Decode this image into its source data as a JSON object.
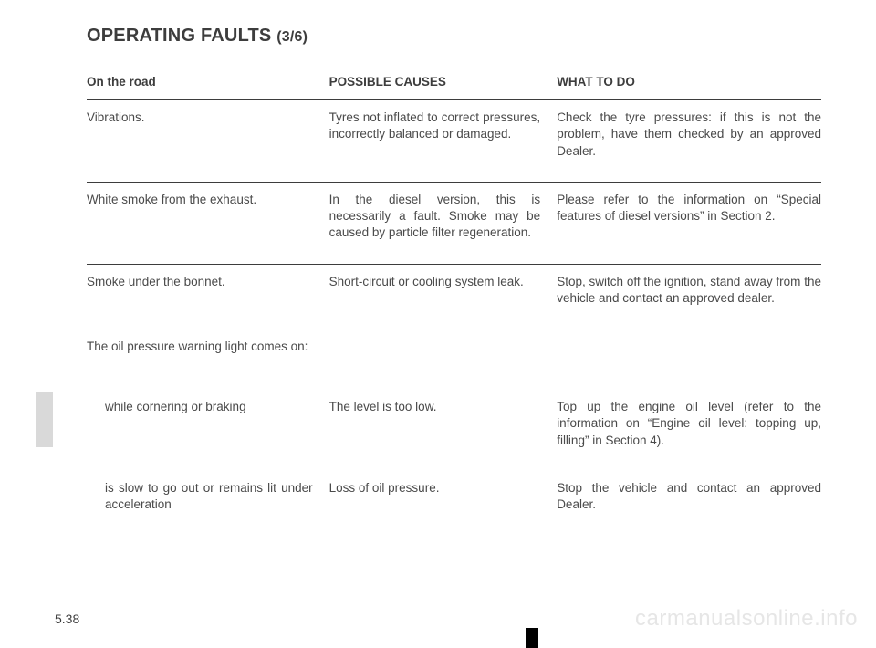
{
  "title_main": "OPERATING FAULTS",
  "title_part": "(3/6)",
  "headers": {
    "col1": "On the road",
    "col2": "POSSIBLE CAUSES",
    "col3": "WHAT TO DO"
  },
  "rows": [
    {
      "symptom": "Vibrations.",
      "cause": "Tyres not inflated to correct pressures, incorrectly balanced or damaged.",
      "action": "Check the tyre pressures: if this is not the problem, have them checked by an approved Dealer."
    },
    {
      "symptom": "White smoke from the exhaust.",
      "cause": "In the diesel version, this is necessarily a fault. Smoke may be caused by particle filter regeneration.",
      "action": "Please refer to the information on “Special features of diesel versions” in Section 2."
    },
    {
      "symptom": "Smoke under the bonnet.",
      "cause": "Short-circuit or cooling system leak.",
      "action": "Stop, switch off the ignition, stand away from the vehicle and contact an approved dealer."
    }
  ],
  "oil_intro": "The oil pressure warning light comes on:",
  "oil_rows": [
    {
      "symptom": "while cornering or braking",
      "cause": "The level is too low.",
      "action": "Top up the engine oil level (refer to the information on “Engine oil level: topping up, filling” in Section 4)."
    },
    {
      "symptom": "is slow to go out or remains lit under acceleration",
      "cause": "Loss of oil pressure.",
      "action": "Stop the vehicle and contact an approved Dealer."
    }
  ],
  "page_number": "5.38",
  "watermark": "carmanualsonline.info"
}
